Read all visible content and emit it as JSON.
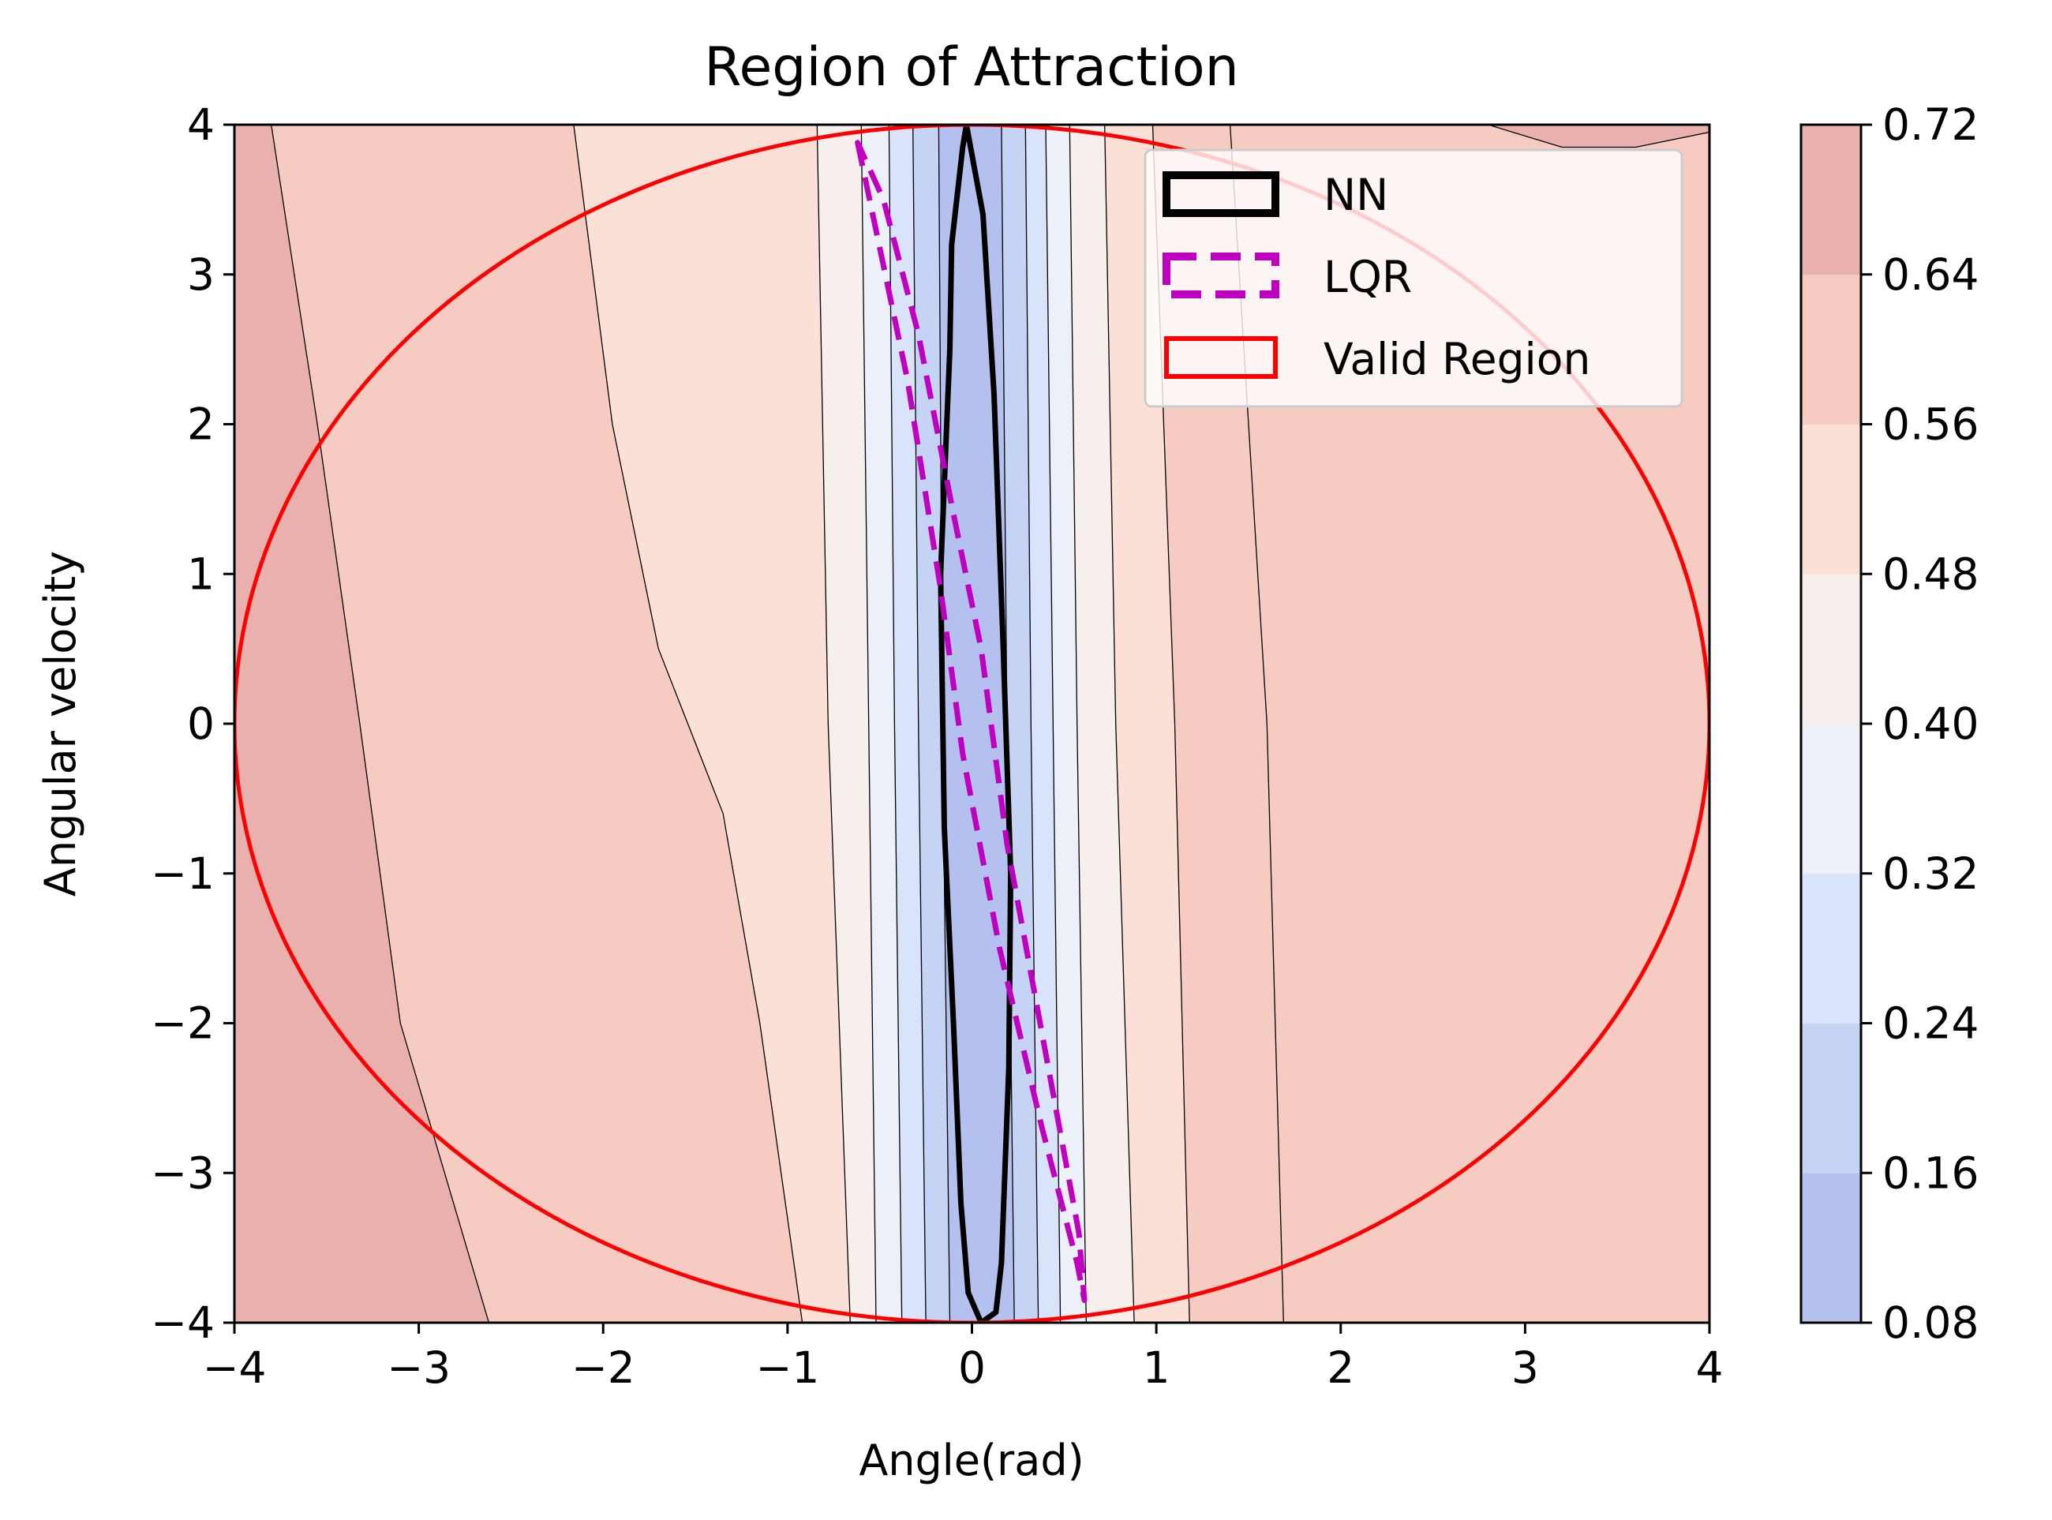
{
  "chart_data": {
    "type": "contour",
    "title": "Region of Attraction",
    "xlabel": "Angle(rad)",
    "ylabel": "Angular velocity",
    "xlim": [
      -4,
      4
    ],
    "ylim": [
      -4,
      4
    ],
    "xticks": [
      -4,
      -3,
      -2,
      -1,
      0,
      1,
      2,
      3,
      4
    ],
    "xtick_labels": [
      "−4",
      "−3",
      "−2",
      "−1",
      "0",
      "1",
      "2",
      "3",
      "4"
    ],
    "yticks": [
      -4,
      -3,
      -2,
      -1,
      0,
      1,
      2,
      3,
      4
    ],
    "ytick_labels": [
      "−4",
      "−3",
      "−2",
      "−1",
      "0",
      "1",
      "2",
      "3",
      "4"
    ],
    "colorbar": {
      "levels": [
        0.08,
        0.16,
        0.24,
        0.32,
        0.4,
        0.48,
        0.56,
        0.64,
        0.72
      ],
      "tick_labels": [
        "0.08",
        "0.16",
        "0.24",
        "0.32",
        "0.40",
        "0.48",
        "0.56",
        "0.64",
        "0.72"
      ],
      "band_colors": [
        "#b4c1ee",
        "#c5d4f5",
        "#d9e4fa",
        "#ebf0f9",
        "#f6efeb",
        "#fae0d6",
        "#f6cbc1",
        "#eab0ae"
      ]
    },
    "contour_lines": [
      {
        "value": 0.64,
        "points": [
          [
            -3.8,
            4
          ],
          [
            -3.55,
            2
          ],
          [
            -3.32,
            0
          ],
          [
            -3.1,
            -2
          ],
          [
            -2.62,
            -4
          ]
        ]
      },
      {
        "value": 0.56,
        "points": [
          [
            -2.16,
            4
          ],
          [
            -1.95,
            2
          ],
          [
            -1.7,
            0.5
          ],
          [
            -1.35,
            -0.6
          ],
          [
            -1.15,
            -2
          ],
          [
            -0.92,
            -4
          ]
        ]
      },
      {
        "value": 0.48,
        "points": [
          [
            -0.84,
            4
          ],
          [
            -0.78,
            0
          ],
          [
            -0.66,
            -4
          ]
        ]
      },
      {
        "value": 0.43,
        "points": [
          [
            -0.6,
            4
          ],
          [
            -0.56,
            0
          ],
          [
            -0.52,
            -4
          ]
        ]
      },
      {
        "value": 0.39,
        "points": [
          [
            -0.45,
            4
          ],
          [
            -0.42,
            0
          ],
          [
            -0.38,
            -4
          ]
        ]
      },
      {
        "value": 0.34,
        "points": [
          [
            -0.32,
            4
          ],
          [
            -0.29,
            0
          ],
          [
            -0.25,
            -4
          ]
        ]
      },
      {
        "value": 0.29,
        "points": [
          [
            -0.18,
            4
          ],
          [
            -0.16,
            0
          ],
          [
            -0.12,
            -4
          ]
        ]
      },
      {
        "value": 0.29,
        "points": [
          [
            0.16,
            4
          ],
          [
            0.19,
            0
          ],
          [
            0.23,
            -4
          ]
        ]
      },
      {
        "value": 0.34,
        "points": [
          [
            0.29,
            4
          ],
          [
            0.32,
            0
          ],
          [
            0.36,
            -4
          ]
        ]
      },
      {
        "value": 0.39,
        "points": [
          [
            0.4,
            4
          ],
          [
            0.44,
            0
          ],
          [
            0.48,
            -4
          ]
        ]
      },
      {
        "value": 0.43,
        "points": [
          [
            0.53,
            4
          ],
          [
            0.57,
            0
          ],
          [
            0.62,
            -4
          ]
        ]
      },
      {
        "value": 0.48,
        "points": [
          [
            0.72,
            4
          ],
          [
            0.78,
            0
          ],
          [
            0.88,
            -4
          ]
        ]
      },
      {
        "value": 0.56,
        "points": [
          [
            0.98,
            4
          ],
          [
            1.1,
            0
          ],
          [
            1.18,
            -4
          ]
        ]
      },
      {
        "value": 0.64,
        "points": [
          [
            1.4,
            4
          ],
          [
            1.6,
            0
          ],
          [
            1.69,
            -4
          ]
        ]
      },
      {
        "value": 0.72,
        "points": [
          [
            2.8,
            4
          ],
          [
            3.2,
            3.85
          ],
          [
            3.6,
            3.85
          ],
          [
            4.0,
            3.95
          ]
        ]
      }
    ],
    "series": [
      {
        "name": "NN",
        "color": "#000000",
        "style": "solid",
        "width": 7,
        "points": [
          [
            -0.03,
            4
          ],
          [
            0.06,
            3.4
          ],
          [
            0.12,
            2.2
          ],
          [
            0.17,
            0.5
          ],
          [
            0.21,
            -1.0
          ],
          [
            0.2,
            -2.3
          ],
          [
            0.16,
            -3.6
          ],
          [
            0.13,
            -3.93
          ],
          [
            0.05,
            -4
          ],
          [
            -0.02,
            -3.8
          ],
          [
            -0.06,
            -3.2
          ],
          [
            -0.1,
            -2.0
          ],
          [
            -0.15,
            -0.7
          ],
          [
            -0.17,
            1.0
          ],
          [
            -0.12,
            2.5
          ],
          [
            -0.11,
            3.2
          ],
          [
            -0.05,
            3.85
          ],
          [
            -0.03,
            4
          ]
        ]
      },
      {
        "name": "LQR",
        "color": "#c000c0",
        "style": "dashed",
        "width": 7,
        "points": [
          [
            -0.62,
            3.88
          ],
          [
            -0.35,
            2.3
          ],
          [
            -0.17,
            0.9
          ],
          [
            -0.05,
            -0.2
          ],
          [
            0.15,
            -1.5
          ],
          [
            0.38,
            -2.7
          ],
          [
            0.57,
            -3.6
          ],
          [
            0.61,
            -3.85
          ],
          [
            0.58,
            -3.4
          ],
          [
            0.37,
            -2.0
          ],
          [
            0.19,
            -0.8
          ],
          [
            0.05,
            0.5
          ],
          [
            -0.1,
            1.4
          ],
          [
            -0.29,
            2.6
          ],
          [
            -0.48,
            3.5
          ],
          [
            -0.62,
            3.88
          ]
        ]
      },
      {
        "name": "Valid Region",
        "color": "#ff0000",
        "style": "solid",
        "width": 5,
        "shape": "ellipse",
        "center": [
          0,
          0
        ],
        "radii": [
          4,
          4
        ]
      }
    ],
    "legend": {
      "position": "top-right",
      "entries": [
        "NN",
        "LQR",
        "Valid Region"
      ]
    },
    "grid": false
  }
}
